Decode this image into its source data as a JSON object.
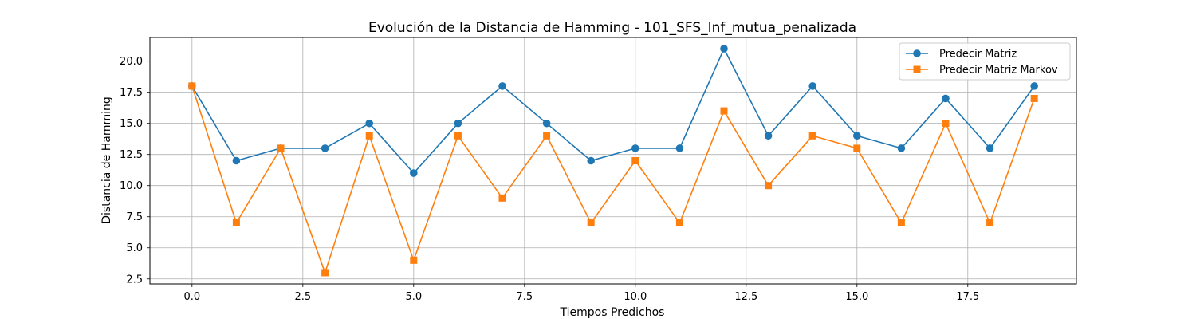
{
  "chart_data": {
    "type": "line",
    "title": "Evolución de la Distancia de Hamming - 101_SFS_Inf_mutua_penalizada",
    "xlabel": "Tiempos Predichos",
    "ylabel": "Distancia de Hamming",
    "x": [
      0,
      1,
      2,
      3,
      4,
      5,
      6,
      7,
      8,
      9,
      10,
      11,
      12,
      13,
      14,
      15,
      16,
      17,
      18,
      19
    ],
    "xlim": [
      -0.95,
      19.95
    ],
    "ylim": [
      2.1,
      21.9
    ],
    "xticks": [
      0.0,
      2.5,
      5.0,
      7.5,
      10.0,
      12.5,
      15.0,
      17.5
    ],
    "xtick_labels": [
      "0.0",
      "2.5",
      "5.0",
      "7.5",
      "10.0",
      "12.5",
      "15.0",
      "17.5"
    ],
    "yticks": [
      2.5,
      5.0,
      7.5,
      10.0,
      12.5,
      15.0,
      17.5,
      20.0
    ],
    "ytick_labels": [
      "2.5",
      "5.0",
      "7.5",
      "10.0",
      "12.5",
      "15.0",
      "17.5",
      "20.0"
    ],
    "grid": true,
    "legend_position": "top-right",
    "series": [
      {
        "name": "Predecir Matriz",
        "color": "#1f77b4",
        "marker": "circle",
        "values": [
          18,
          12,
          13,
          13,
          15,
          11,
          15,
          18,
          15,
          12,
          13,
          13,
          21,
          14,
          18,
          14,
          13,
          17,
          13,
          18
        ]
      },
      {
        "name": "Predecir Matriz Markov",
        "color": "#ff7f0e",
        "marker": "square",
        "values": [
          18,
          7,
          13,
          3,
          14,
          4,
          14,
          9,
          14,
          7,
          12,
          7,
          16,
          10,
          14,
          13,
          7,
          15,
          7,
          17
        ]
      }
    ]
  }
}
